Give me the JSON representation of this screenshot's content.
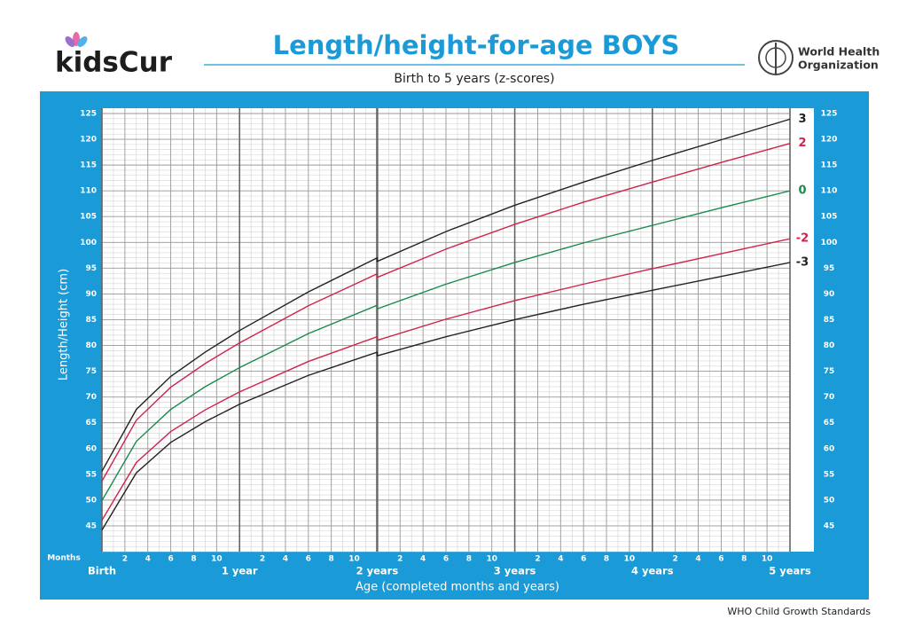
{
  "brand": "kidsCur",
  "organization": [
    "World Health",
    "Organization"
  ],
  "footer": "WHO Child Growth Standards",
  "chart_data": {
    "type": "line",
    "title": "Length/height-for-age BOYS",
    "subtitle": "Birth to 5 years (z-scores)",
    "x_label": "Age (completed months and years)",
    "y_label": "Length/Height (cm)",
    "months_label": "Months",
    "x": [
      0,
      3,
      6,
      9,
      12,
      18,
      24,
      24,
      30,
      36,
      42,
      48,
      54,
      60
    ],
    "series": [
      {
        "name": "3",
        "color": "#222222",
        "values": [
          55.6,
          67.6,
          74.0,
          78.7,
          82.9,
          90.4,
          97.0,
          96.3,
          102.1,
          107.2,
          111.7,
          115.9,
          119.9,
          123.9
        ]
      },
      {
        "name": "2",
        "color": "#d0234b",
        "values": [
          53.7,
          65.5,
          71.9,
          76.5,
          80.5,
          87.7,
          93.9,
          93.2,
          98.7,
          103.5,
          107.8,
          111.7,
          115.5,
          119.2
        ]
      },
      {
        "name": "0",
        "color": "#1b8a4c",
        "values": [
          49.9,
          61.4,
          67.6,
          72.0,
          75.7,
          82.3,
          87.8,
          87.1,
          91.9,
          96.1,
          99.9,
          103.3,
          106.7,
          110.0
        ]
      },
      {
        "name": "-2",
        "color": "#d0234b",
        "values": [
          46.1,
          57.3,
          63.3,
          67.5,
          71.0,
          76.9,
          81.7,
          81.0,
          85.1,
          88.7,
          91.9,
          94.9,
          97.8,
          100.7
        ]
      },
      {
        "name": "-3",
        "color": "#222222",
        "values": [
          44.2,
          55.3,
          61.2,
          65.2,
          68.6,
          74.2,
          78.7,
          78.0,
          81.7,
          85.0,
          88.0,
          90.7,
          93.4,
          96.1
        ]
      }
    ],
    "xlim": [
      0,
      60
    ],
    "ylim": [
      40,
      125
    ],
    "yticks": [
      45,
      50,
      55,
      60,
      65,
      70,
      75,
      80,
      85,
      90,
      95,
      100,
      105,
      110,
      115,
      120,
      125
    ],
    "xticks": [
      2,
      4,
      6,
      8,
      10,
      {
        "value": 14,
        "label": "2"
      },
      {
        "value": 16,
        "label": "4"
      },
      {
        "value": 18,
        "label": "6"
      },
      {
        "value": 20,
        "label": "8"
      },
      {
        "value": 22,
        "label": "10"
      },
      {
        "value": 26,
        "label": "2"
      },
      {
        "value": 28,
        "label": "4"
      },
      {
        "value": 30,
        "label": "6"
      },
      {
        "value": 32,
        "label": "8"
      },
      {
        "value": 34,
        "label": "10"
      },
      {
        "value": 38,
        "label": "2"
      },
      {
        "value": 40,
        "label": "4"
      },
      {
        "value": 42,
        "label": "6"
      },
      {
        "value": 44,
        "label": "8"
      },
      {
        "value": 46,
        "label": "10"
      },
      {
        "value": 50,
        "label": "2"
      },
      {
        "value": 52,
        "label": "4"
      },
      {
        "value": 54,
        "label": "6"
      },
      {
        "value": 56,
        "label": "8"
      },
      {
        "value": 58,
        "label": "10"
      }
    ],
    "year_ticks": [
      {
        "value": 0,
        "label": "Birth"
      },
      {
        "value": 12,
        "label": "1 year"
      },
      {
        "value": 24,
        "label": "2 years"
      },
      {
        "value": 36,
        "label": "3 years"
      },
      {
        "value": 48,
        "label": "4 years"
      },
      {
        "value": 60,
        "label": "5 years"
      }
    ],
    "grid": true,
    "minor_grid": {
      "x": 1,
      "y": 1
    }
  }
}
